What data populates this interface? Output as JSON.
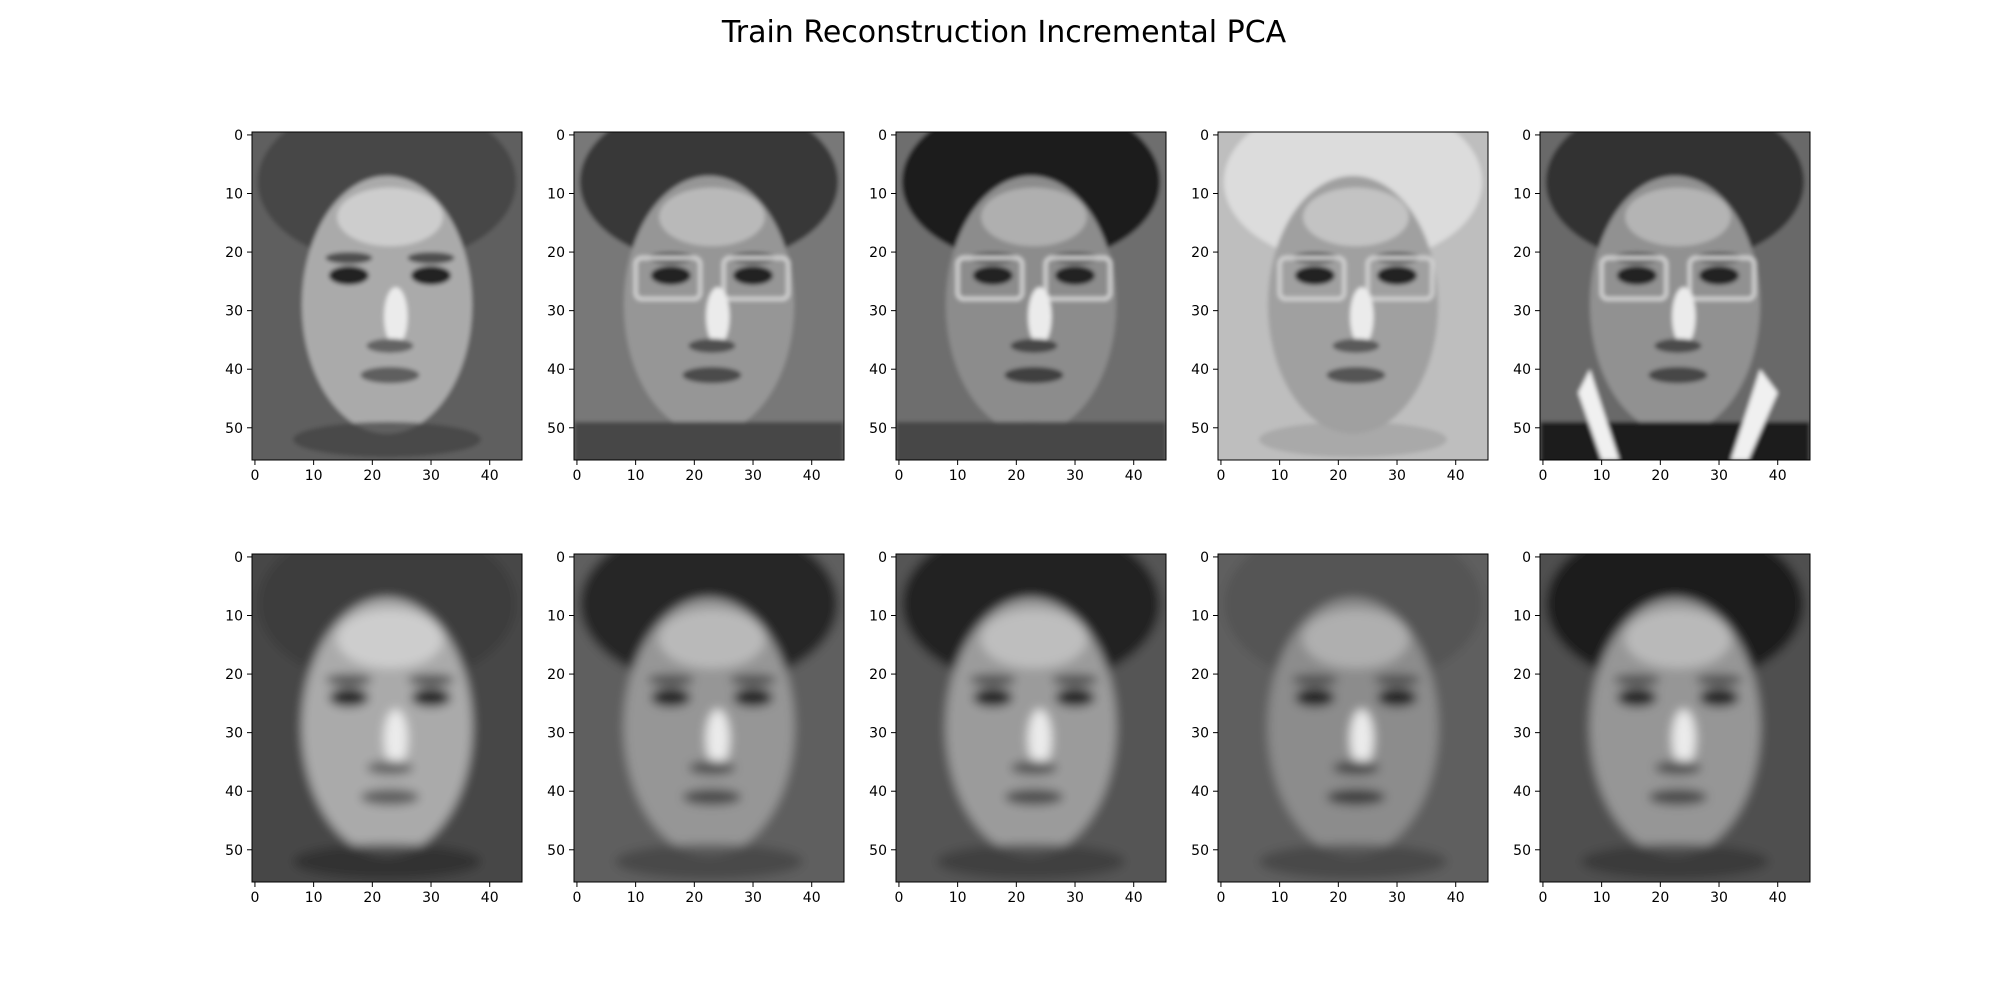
{
  "figure": {
    "title": "Train Reconstruction Incremental PCA"
  },
  "chart_data": {
    "type": "heatmap",
    "title": "Train Reconstruction Incremental PCA",
    "colormap": "gray",
    "grid": false,
    "rows": 2,
    "cols": 5,
    "image_shape": [
      56,
      46
    ],
    "xlim": [
      -0.5,
      45.5
    ],
    "ylim": [
      55.5,
      -0.5
    ],
    "xticks": [
      0,
      10,
      20,
      30,
      40
    ],
    "yticks": [
      0,
      10,
      20,
      30,
      40,
      50
    ],
    "panels": [
      {
        "row": 0,
        "col": 0,
        "content": "training face"
      },
      {
        "row": 0,
        "col": 1,
        "content": "training face"
      },
      {
        "row": 0,
        "col": 2,
        "content": "training face"
      },
      {
        "row": 0,
        "col": 3,
        "content": "training face"
      },
      {
        "row": 0,
        "col": 4,
        "content": "training face"
      },
      {
        "row": 1,
        "col": 0,
        "content": "PCA reconstruction"
      },
      {
        "row": 1,
        "col": 1,
        "content": "PCA reconstruction"
      },
      {
        "row": 1,
        "col": 2,
        "content": "PCA reconstruction"
      },
      {
        "row": 1,
        "col": 3,
        "content": "PCA reconstruction"
      },
      {
        "row": 1,
        "col": 4,
        "content": "PCA reconstruction"
      }
    ]
  }
}
